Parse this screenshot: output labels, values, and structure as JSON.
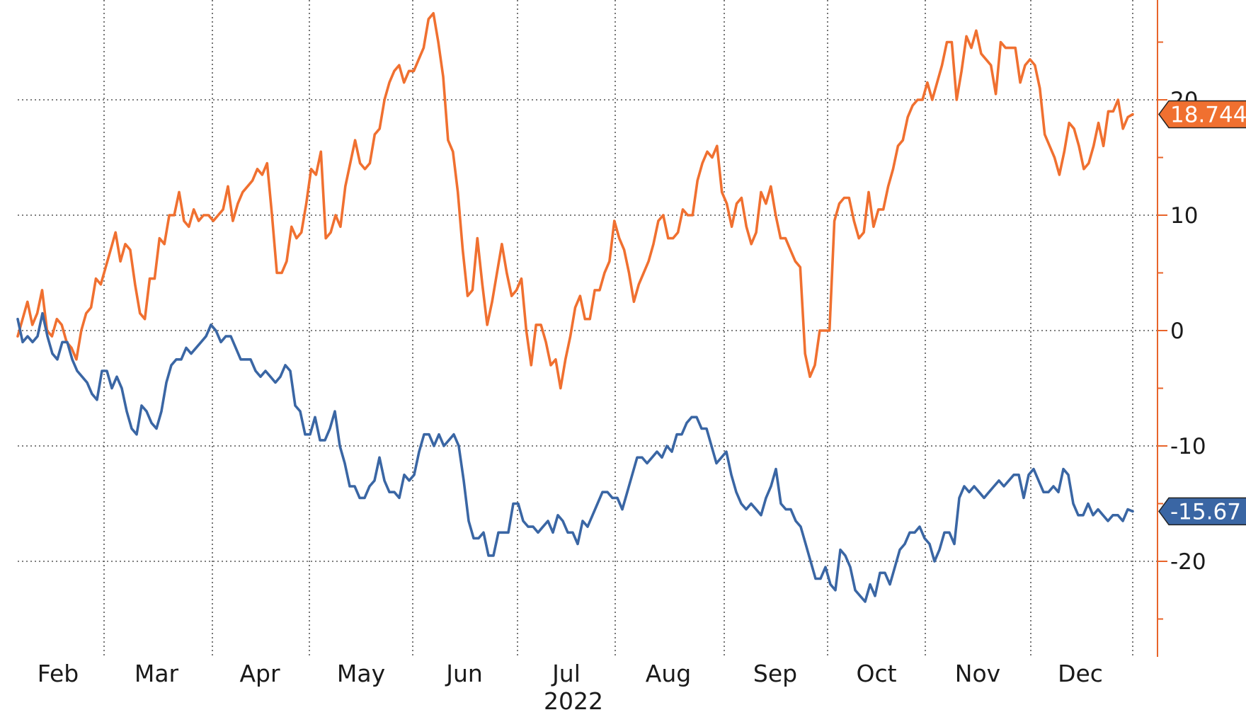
{
  "chart_data": {
    "type": "line",
    "x_tick_labels": [
      "Feb",
      "Mar",
      "Apr",
      "May",
      "Jun",
      "Jul",
      "Aug",
      "Sep",
      "Oct",
      "Nov",
      "Dec"
    ],
    "year_label": "2022",
    "y_ticks": [
      20,
      10,
      0,
      -10,
      -20
    ],
    "ylim": [
      -28,
      28
    ],
    "grid": true,
    "axis_color": "#e8642a",
    "series": [
      {
        "color": "#f07030",
        "last_value_label": "18.744",
        "last_value": 18.744,
        "values": [
          -0.5,
          1,
          2.5,
          0.5,
          1.5,
          3.5,
          0,
          -0.5,
          1,
          0.5,
          -1,
          -1.5,
          -2.5,
          0,
          1.5,
          2,
          4.5,
          4,
          5.5,
          7,
          8.5,
          6,
          7.5,
          7,
          4,
          1.5,
          1,
          4.5,
          4.5,
          8,
          7.5,
          10,
          10,
          12,
          9.5,
          9,
          10.5,
          9.5,
          10,
          10,
          9.5,
          10,
          10.5,
          12.5,
          9.5,
          11,
          12,
          12.5,
          13,
          14,
          13.5,
          14.5,
          10,
          5,
          5,
          6,
          9,
          8,
          8.5,
          11,
          14,
          13.5,
          15.5,
          8,
          8.5,
          10,
          9,
          12.5,
          14.5,
          16.5,
          14.5,
          14,
          14.5,
          17,
          17.5,
          20,
          21.5,
          22.5,
          23,
          21.5,
          22.5,
          22.5,
          23.5,
          24.5,
          27,
          27.5,
          25,
          22,
          16.5,
          15.5,
          12,
          7,
          3,
          3.5,
          8,
          4,
          0.5,
          2.5,
          5,
          7.5,
          5,
          3,
          3.5,
          4.5,
          0,
          -3,
          0.5,
          0.5,
          -1,
          -3,
          -2.5,
          -5,
          -2.5,
          -0.5,
          2,
          3,
          1,
          1,
          3.5,
          3.5,
          5,
          6,
          9.5,
          8,
          7,
          5,
          2.5,
          4,
          5,
          6,
          7.5,
          9.5,
          10,
          8,
          8,
          8.5,
          10.5,
          10,
          10,
          13,
          14.5,
          15.5,
          15,
          16,
          12,
          11,
          9,
          11,
          11.5,
          9,
          7.5,
          8.5,
          12,
          11,
          12.5,
          10,
          8,
          8,
          7,
          6,
          5.5,
          -2,
          -4,
          -3,
          0,
          0,
          0,
          9.5,
          11,
          11.5,
          11.5,
          9.5,
          8,
          8.5,
          12,
          9,
          10.5,
          10.5,
          12.5,
          14,
          16,
          16.5,
          18.5,
          19.5,
          20,
          20,
          21.5,
          20,
          21.5,
          23,
          25,
          25,
          20,
          22.5,
          25.5,
          24.5,
          26,
          24,
          23.5,
          23,
          20.5,
          25,
          24.5,
          24.5,
          24.5,
          21.5,
          23,
          23.5,
          23,
          21,
          17,
          16,
          15,
          13.5,
          15.5,
          18,
          17.5,
          16,
          14,
          14.5,
          16,
          18,
          16,
          19,
          19,
          20,
          17.5,
          18.5,
          18.744
        ]
      },
      {
        "color": "#3a66a4",
        "last_value_label": "-15.67",
        "last_value": -15.67,
        "values": [
          1,
          -1,
          -0.5,
          -1,
          -0.5,
          1.5,
          -0.5,
          -2,
          -2.5,
          -1,
          -1,
          -2.5,
          -3.5,
          -4,
          -4.5,
          -5.5,
          -6,
          -3.5,
          -3.5,
          -5,
          -4,
          -5,
          -7,
          -8.5,
          -9,
          -6.5,
          -7,
          -8,
          -8.5,
          -7,
          -4.5,
          -3,
          -2.5,
          -2.5,
          -1.5,
          -2,
          -1.5,
          -1,
          -0.5,
          0.5,
          0,
          -1,
          -0.5,
          -0.5,
          -1.5,
          -2.5,
          -2.5,
          -2.5,
          -3.5,
          -4,
          -3.5,
          -4,
          -4.5,
          -4,
          -3,
          -3.5,
          -6.5,
          -7,
          -9,
          -9,
          -7.5,
          -9.5,
          -9.5,
          -8.5,
          -7,
          -10,
          -11.5,
          -13.5,
          -13.5,
          -14.5,
          -14.5,
          -13.5,
          -13,
          -11,
          -13,
          -14,
          -14,
          -14.5,
          -12.5,
          -13,
          -12.5,
          -10.5,
          -9,
          -9,
          -10,
          -9,
          -10,
          -9.5,
          -9,
          -10,
          -13,
          -16.5,
          -18,
          -18,
          -17.5,
          -19.5,
          -19.5,
          -17.5,
          -17.5,
          -17.5,
          -15,
          -15,
          -16.5,
          -17,
          -17,
          -17.5,
          -17,
          -16.5,
          -17.5,
          -16,
          -16.5,
          -17.5,
          -17.5,
          -18.5,
          -16.5,
          -17,
          -16,
          -15,
          -14,
          -14,
          -14.5,
          -14.5,
          -15.5,
          -14,
          -12.5,
          -11,
          -11,
          -11.5,
          -11,
          -10.5,
          -11,
          -10,
          -10.5,
          -9,
          -9,
          -8,
          -7.5,
          -7.5,
          -8.5,
          -8.5,
          -10,
          -11.5,
          -11,
          -10.5,
          -12.5,
          -14,
          -15,
          -15.5,
          -15,
          -15.5,
          -16,
          -14.5,
          -13.5,
          -12,
          -15,
          -15.5,
          -15.5,
          -16.5,
          -17,
          -18.5,
          -20,
          -21.5,
          -21.5,
          -20.5,
          -22,
          -22.5,
          -19,
          -19.5,
          -20.5,
          -22.5,
          -23,
          -23.5,
          -22,
          -23,
          -21,
          -21,
          -22,
          -20.5,
          -19,
          -18.5,
          -17.5,
          -17.5,
          -17,
          -18,
          -18.5,
          -20,
          -19,
          -17.5,
          -17.5,
          -18.5,
          -14.5,
          -13.5,
          -14,
          -13.5,
          -14,
          -14.5,
          -14,
          -13.5,
          -13,
          -13.5,
          -13,
          -12.5,
          -12.5,
          -14.5,
          -12.5,
          -12,
          -13,
          -14,
          -14,
          -13.5,
          -14,
          -12,
          -12.5,
          -15,
          -16,
          -16,
          -15,
          -16,
          -15.5,
          -16,
          -16.5,
          -16,
          -16,
          -16.5,
          -15.5,
          -15.67
        ]
      }
    ]
  }
}
